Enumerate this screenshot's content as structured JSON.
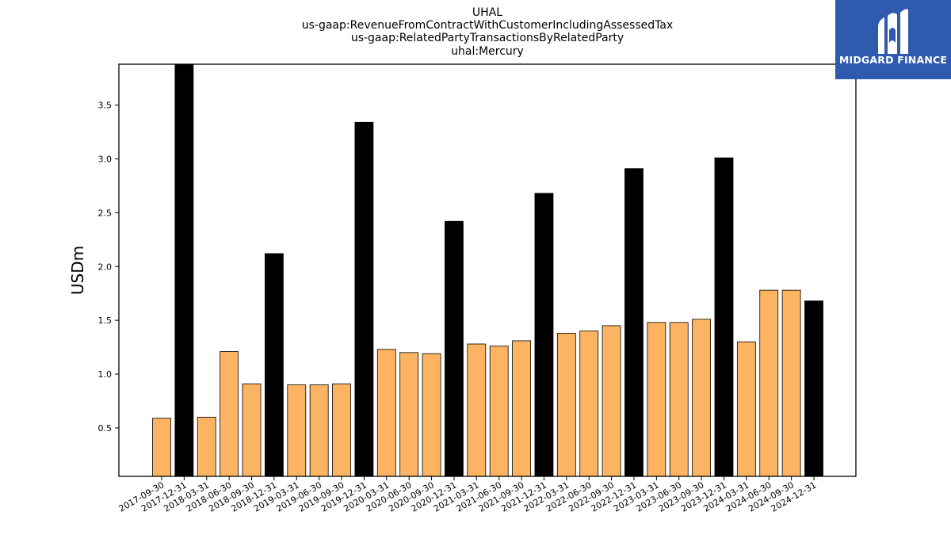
{
  "title_lines": [
    "UHAL",
    "us-gaap:RevenueFromContractWithCustomerIncludingAssessedTax",
    "us-gaap:RelatedPartyTransactionsByRelatedParty",
    "uhal:Mercury"
  ],
  "logo": {
    "text": "MIDGARD FINANCE",
    "background": "#2f5aae",
    "icon": "midgard-finance-logo-icon"
  },
  "colors": {
    "quarter_bar": "#fdb462",
    "year_end_bar": "#000000",
    "bar_edge": "#000000"
  },
  "chart_data": {
    "type": "bar",
    "title": "UHAL\nus-gaap:RevenueFromContractWithCustomerIncludingAssessedTax\nus-gaap:RelatedPartyTransactionsByRelatedParty\nuhal:Mercury",
    "xlabel": "",
    "ylabel": "USDm",
    "ylim": [
      0.05,
      3.88
    ],
    "yticks": [
      0.5,
      1.0,
      1.5,
      2.0,
      2.5,
      3.0,
      3.5
    ],
    "ytick_labels": [
      "0.5",
      "1.0",
      "1.5",
      "2.0",
      "2.5",
      "3.0",
      "3.5"
    ],
    "grid": false,
    "categories": [
      "2017-09-30",
      "2017-12-31",
      "2018-03-31",
      "2018-06-30",
      "2018-09-30",
      "2018-12-31",
      "2019-03-31",
      "2019-06-30",
      "2019-09-30",
      "2019-12-31",
      "2020-03-31",
      "2020-06-30",
      "2020-09-30",
      "2020-12-31",
      "2021-03-31",
      "2021-06-30",
      "2021-09-30",
      "2021-12-31",
      "2022-03-31",
      "2022-06-30",
      "2022-09-30",
      "2022-12-31",
      "2023-03-31",
      "2023-06-30",
      "2023-09-30",
      "2023-12-31",
      "2024-03-31",
      "2024-06-30",
      "2024-09-30",
      "2024-12-31"
    ],
    "values": [
      0.59,
      3.9,
      0.6,
      1.21,
      0.91,
      2.12,
      0.9,
      0.9,
      0.91,
      3.34,
      1.23,
      1.2,
      1.19,
      2.42,
      1.28,
      1.26,
      1.31,
      2.68,
      1.38,
      1.4,
      1.45,
      2.91,
      1.48,
      1.48,
      1.51,
      3.01,
      1.3,
      1.78,
      1.78,
      1.68
    ],
    "bar_colors": [
      "#fdb462",
      "#000000",
      "#fdb462",
      "#fdb462",
      "#fdb462",
      "#000000",
      "#fdb462",
      "#fdb462",
      "#fdb462",
      "#000000",
      "#fdb462",
      "#fdb462",
      "#fdb462",
      "#000000",
      "#fdb462",
      "#fdb462",
      "#fdb462",
      "#000000",
      "#fdb462",
      "#fdb462",
      "#fdb462",
      "#000000",
      "#fdb462",
      "#fdb462",
      "#fdb462",
      "#000000",
      "#fdb462",
      "#fdb462",
      "#fdb462",
      "#000000"
    ]
  }
}
